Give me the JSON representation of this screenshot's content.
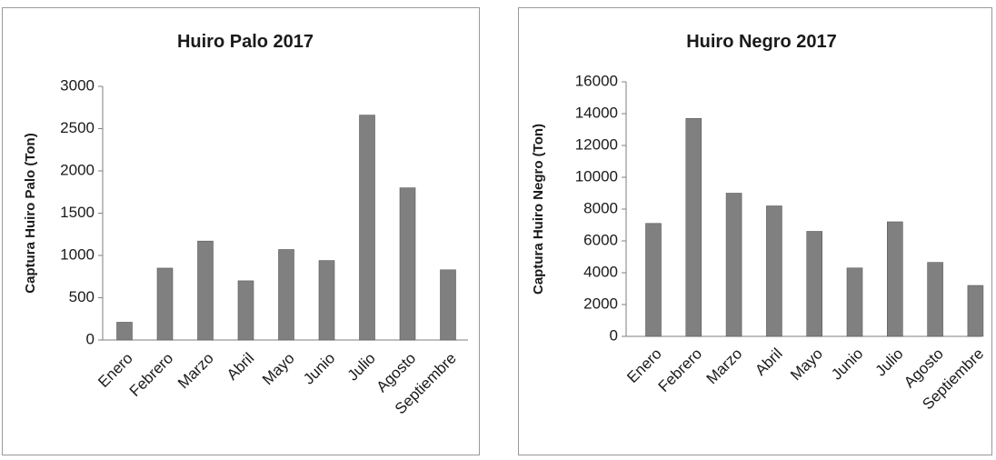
{
  "chart_data": [
    {
      "type": "bar",
      "title": "Huiro Palo 2017",
      "xlabel": "",
      "ylabel": "Captura Huiro Palo (Ton)",
      "categories": [
        "Enero",
        "Febrero",
        "Marzo",
        "Abril",
        "Mayo",
        "Junio",
        "Julio",
        "Agosto",
        "Septiembre"
      ],
      "values": [
        210,
        850,
        1170,
        700,
        1070,
        940,
        2660,
        1800,
        830
      ],
      "ylim": [
        0,
        3000
      ],
      "yticks": [
        0,
        500,
        1000,
        1500,
        2000,
        2500,
        3000
      ],
      "grid": false,
      "legend": "none",
      "bar_color": "#808080"
    },
    {
      "type": "bar",
      "title": "Huiro Negro 2017",
      "xlabel": "",
      "ylabel": "Captura Huiro Negro (Ton)",
      "categories": [
        "Enero",
        "Febrero",
        "Marzo",
        "Abril",
        "Mayo",
        "Junio",
        "Julio",
        "Agosto",
        "Septiembre"
      ],
      "values": [
        7100,
        13700,
        9000,
        8200,
        6600,
        4300,
        7200,
        4650,
        3200
      ],
      "ylim": [
        0,
        16000
      ],
      "yticks": [
        0,
        2000,
        4000,
        6000,
        8000,
        10000,
        12000,
        14000,
        16000
      ],
      "grid": false,
      "legend": "none",
      "bar_color": "#808080"
    }
  ]
}
